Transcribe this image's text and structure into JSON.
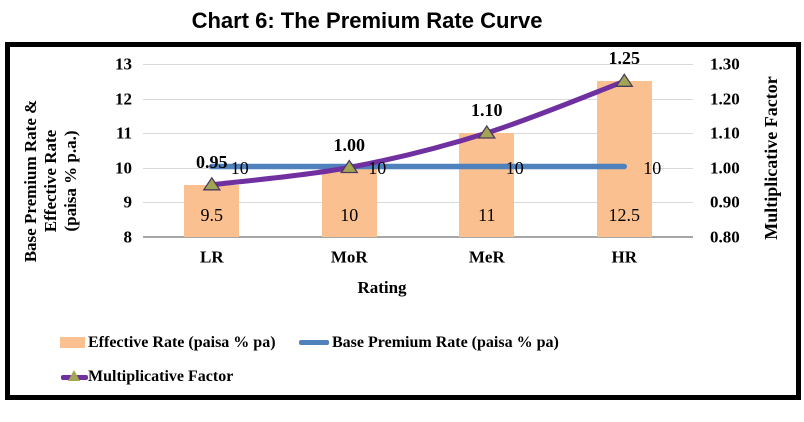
{
  "title": "Chart 6: The Premium Rate Curve",
  "colors": {
    "bar_fill": "#FAC090",
    "base_premium_line": "#4F81BD",
    "multiplicative_line": "#7030A0",
    "marker_fill": "#A2A552",
    "marker_stroke": "#4A3A60",
    "gridline": "#D9D9D9",
    "axis_line": "#A6A6A6",
    "frame": "#000000"
  },
  "axes": {
    "x": {
      "title": "Rating"
    },
    "left": {
      "title_lines": [
        "Base Premium Rate  &",
        "Effective Rate",
        "(paisa % p.a.)"
      ],
      "ticks": [
        "13",
        "12",
        "11",
        "10",
        "9",
        "8"
      ]
    },
    "right": {
      "title": "Multiplicative Factor",
      "ticks": [
        "1.30",
        "1.20",
        "1.10",
        "1.00",
        "0.90",
        "0.80"
      ]
    }
  },
  "chart_data": {
    "type": "combo bar+line",
    "categories": [
      "LR",
      "MoR",
      "MeR",
      "HR"
    ],
    "series": [
      {
        "name": "Effective Rate (paisa % pa)",
        "type": "bar",
        "axis": "left",
        "values": [
          9.5,
          10,
          11,
          12.5
        ],
        "labels": [
          "9.5",
          "10",
          "11",
          "12.5"
        ]
      },
      {
        "name": "Base Premium Rate (paisa %  pa)",
        "type": "line",
        "axis": "left",
        "values": [
          10,
          10,
          10,
          10
        ],
        "labels": [
          "10",
          "10",
          "10",
          "10"
        ]
      },
      {
        "name": "Multiplicative Factor",
        "type": "line",
        "axis": "right",
        "values": [
          0.95,
          1.0,
          1.1,
          1.25
        ],
        "labels": [
          "0.95",
          "1.00",
          "1.10",
          "1.25"
        ],
        "marker": "triangle"
      }
    ],
    "xlabel": "Rating",
    "ylabel_left": "Base Premium Rate & Effective Rate (paisa % p.a.)",
    "ylabel_right": "Multiplicative Factor",
    "ylim_left": [
      8,
      13
    ],
    "ylim_right": [
      0.8,
      1.3
    ],
    "grid": true,
    "legend_position": "bottom"
  },
  "legend": {
    "items": [
      {
        "label": "Effective Rate (paisa % pa)",
        "swatch": "bar"
      },
      {
        "label": "Base Premium Rate (paisa %  pa)",
        "swatch": "line"
      },
      {
        "label": "Multiplicative Factor",
        "swatch": "line-with-marker"
      }
    ]
  }
}
